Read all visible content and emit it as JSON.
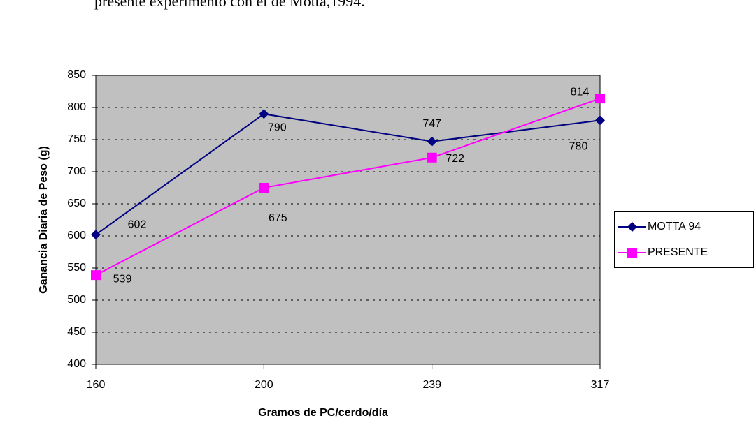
{
  "caption_fragment": "presente experimento con el de Motta,1994.",
  "chart_data": {
    "type": "line",
    "x_label": "Gramos de PC/cerdo/día",
    "y_label": "Ganancia Diaria de Peso (g)",
    "categories": [
      "160",
      "200",
      "239",
      "317"
    ],
    "series": [
      {
        "name": "MOTTA 94",
        "color": "#000080",
        "marker": "diamond",
        "values": [
          602,
          790,
          747,
          780
        ]
      },
      {
        "name": "PRESENTE",
        "color": "#ff00ff",
        "marker": "square",
        "values": [
          539,
          675,
          722,
          814
        ]
      }
    ],
    "ylim": [
      400,
      850
    ],
    "yticks": [
      400,
      450,
      500,
      550,
      600,
      650,
      700,
      750,
      800,
      850
    ],
    "grid": true,
    "legend": "right"
  }
}
